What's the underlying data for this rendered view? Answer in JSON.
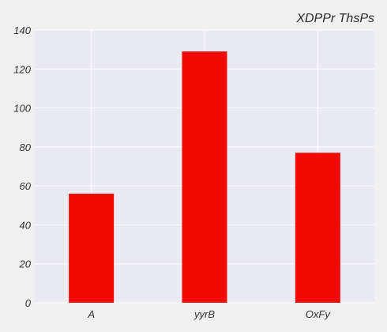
{
  "chart_data": {
    "type": "bar",
    "title": "XDPPr ThsPs",
    "categories": [
      "A",
      "yyrB",
      "OxFy"
    ],
    "values": [
      56,
      129,
      77
    ],
    "ylim": [
      0,
      140
    ],
    "yticks": [
      0,
      20,
      40,
      60,
      80,
      100,
      120,
      140
    ],
    "grid": true,
    "colors": {
      "background": "#f0f0f0",
      "plot_area": "#eaeaf2",
      "grid": "#ffffff",
      "bar": "#f00a00"
    }
  }
}
